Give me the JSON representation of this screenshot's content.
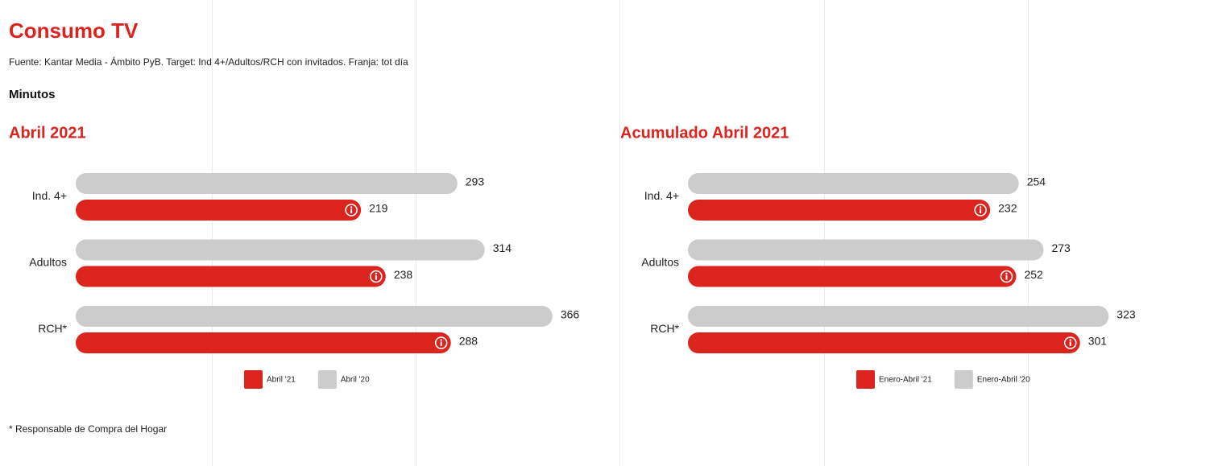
{
  "header": {
    "title": "Consumo TV",
    "source": "Fuente: Kantar Media - Ámbito PyB. Target: Ind 4+/Adultos/RCH con invitados. Franja: tot día",
    "unit": "Minutos"
  },
  "chart_data": [
    {
      "type": "bar",
      "orientation": "horizontal",
      "title": "Abril 2021",
      "categories": [
        "Ind. 4+",
        "Adultos",
        "RCH*"
      ],
      "series": [
        {
          "name": "Abril '21",
          "color": "#dc241f",
          "values": [
            219,
            238,
            288
          ]
        },
        {
          "name": "Abril '20",
          "color": "#cccccc",
          "values": [
            293,
            314,
            366
          ]
        }
      ]
    },
    {
      "type": "bar",
      "orientation": "horizontal",
      "title": "Acumulado Abril 2021",
      "categories": [
        "Ind. 4+",
        "Adultos",
        "RCH*"
      ],
      "series": [
        {
          "name": "Enero-Abril '21",
          "color": "#dc241f",
          "values": [
            232,
            252,
            301
          ]
        },
        {
          "name": "Enero-Abril '20",
          "color": "#cccccc",
          "values": [
            254,
            273,
            323
          ]
        }
      ]
    }
  ],
  "footnote": "* Responsable de Compra del Hogar"
}
